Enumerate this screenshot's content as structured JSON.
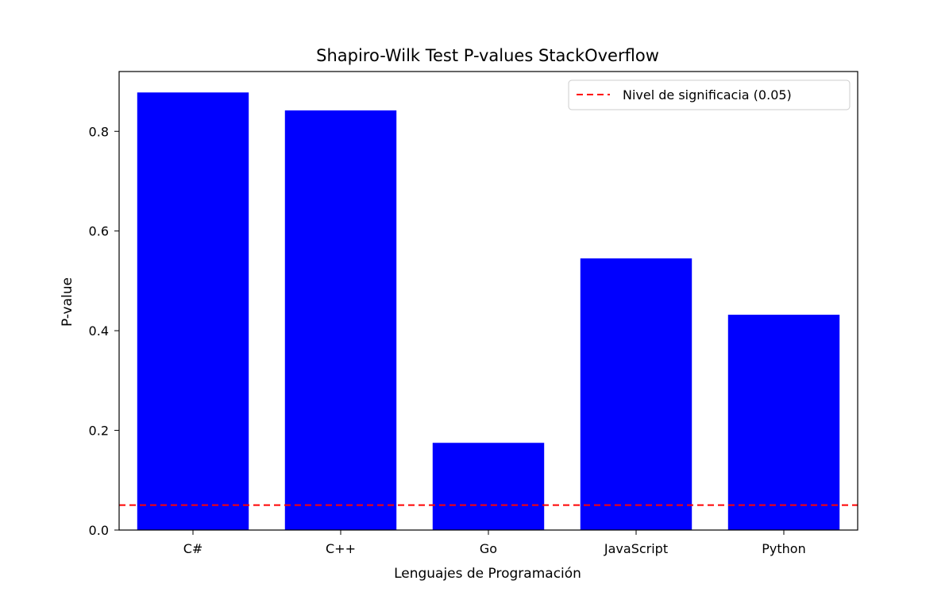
{
  "chart_data": {
    "type": "bar",
    "title": "Shapiro-Wilk Test P-values StackOverflow",
    "xlabel": "Lenguajes de Programación",
    "ylabel": "P-value",
    "categories": [
      "C#",
      "C++",
      "Go",
      "JavaScript",
      "Python"
    ],
    "values": [
      0.878,
      0.842,
      0.175,
      0.545,
      0.432
    ],
    "ylim": [
      0,
      0.92
    ],
    "yticks": [
      0.0,
      0.2,
      0.4,
      0.6,
      0.8
    ],
    "ytick_labels": [
      "0.0",
      "0.2",
      "0.4",
      "0.6",
      "0.8"
    ],
    "bar_color": "#0000ff",
    "grid": false,
    "reference_line": {
      "value": 0.05,
      "label": "Nivel de significacia (0.05)",
      "color": "#ff0000",
      "style": "dashed"
    },
    "legend_position": "top-right"
  }
}
